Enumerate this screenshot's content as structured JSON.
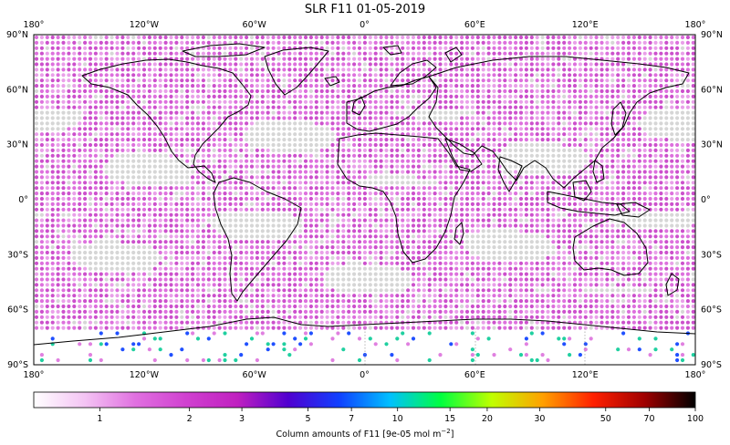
{
  "title": "SLR F11 01-05-2019",
  "map": {
    "lon_ticks": [
      "180°",
      "120°W",
      "60°W",
      "0°",
      "60°E",
      "120°E",
      "180°"
    ],
    "lat_ticks": [
      "90°N",
      "60°N",
      "30°N",
      "0°",
      "30°S",
      "60°S",
      "90°S"
    ],
    "projection": "plate-carree",
    "dot_color_dominant": "#cc55cc",
    "missing_color": "#d8d8d8",
    "coastline_color": "#000000"
  },
  "colorbar": {
    "ticks": [
      "1",
      "2",
      "3",
      "5",
      "7",
      "10",
      "15",
      "20",
      "30",
      "50",
      "70",
      "100"
    ],
    "label": "Column amounts of F11 [9e-05 mol m",
    "label_exp": "−2",
    "label_end": "]",
    "colors": [
      "#ffffff",
      "#f4c4f4",
      "#e070e0",
      "#d040d0",
      "#c020c0",
      "#5000d0",
      "#1040ff",
      "#00c0ff",
      "#00ff40",
      "#c0ff00",
      "#ffa000",
      "#ff2000",
      "#a00000",
      "#000000"
    ]
  }
}
